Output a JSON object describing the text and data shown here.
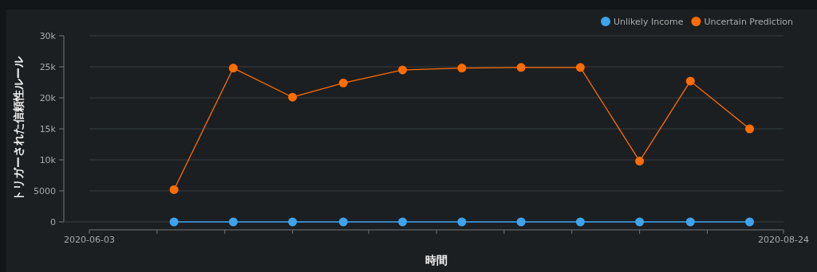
{
  "chart_data": {
    "type": "line",
    "xlabel": "時間",
    "ylabel": "トリガーされた信頼性ルール",
    "x": [
      "2020-06-13",
      "2020-06-20",
      "2020-06-27",
      "2020-07-03",
      "2020-07-10",
      "2020-07-17",
      "2020-07-24",
      "2020-07-31",
      "2020-08-07",
      "2020-08-13",
      "2020-08-20"
    ],
    "series": [
      {
        "name": "Unlikely Income",
        "color": "#3ea3ec",
        "values": [
          0,
          0,
          0,
          0,
          0,
          0,
          0,
          0,
          0,
          0,
          0
        ]
      },
      {
        "name": "Uncertain Prediction",
        "color": "#ff6d00",
        "values": [
          5200,
          24800,
          20100,
          22400,
          24500,
          24800,
          24900,
          24900,
          9800,
          22700,
          15000
        ]
      }
    ],
    "xlim": [
      "2020-06-03",
      "2020-08-24"
    ],
    "xticks": [
      {
        "value": "2020-06-03",
        "label": "2020-06-03"
      },
      {
        "value": "2020-06-11",
        "label": null
      },
      {
        "value": "2020-06-19",
        "label": null
      },
      {
        "value": "2020-06-27",
        "label": null
      },
      {
        "value": "2020-07-06",
        "label": null
      },
      {
        "value": "2020-07-14",
        "label": null
      },
      {
        "value": "2020-07-22",
        "label": null
      },
      {
        "value": "2020-07-30",
        "label": null
      },
      {
        "value": "2020-08-07",
        "label": null
      },
      {
        "value": "2020-08-15",
        "label": null
      },
      {
        "value": "2020-08-24",
        "label": "2020-08-24"
      }
    ],
    "ylim": [
      0,
      30000
    ],
    "yticks": [
      {
        "value": 0,
        "label": "0"
      },
      {
        "value": 5000,
        "label": "5000"
      },
      {
        "value": 10000,
        "label": "10k"
      },
      {
        "value": 15000,
        "label": "15k"
      },
      {
        "value": 20000,
        "label": "20k"
      },
      {
        "value": 25000,
        "label": "25k"
      },
      {
        "value": 30000,
        "label": "30k"
      }
    ],
    "grid": "y",
    "legend": "top right",
    "marker": "circle",
    "line_style": "solid"
  }
}
